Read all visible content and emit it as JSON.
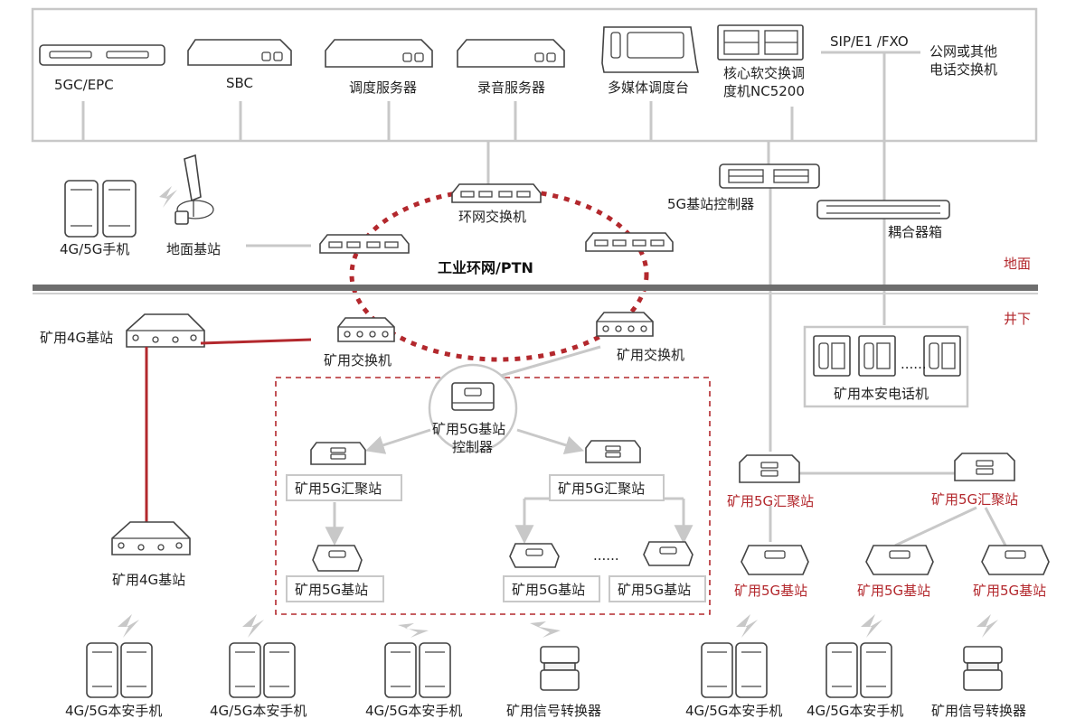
{
  "colors": {
    "accent_red": "#b3282d",
    "line_gray": "#c8c8c8",
    "text": "#222222"
  },
  "top": {
    "devices": [
      "5GC/EPC",
      "SBC",
      "调度服务器",
      "录音服务器",
      "多媒体调度台"
    ],
    "core_switch": [
      "核心软交换调",
      "度机NC5200"
    ],
    "sip_label": "SIP/E1 /FXO",
    "external": [
      "公网或其他",
      "电话交换机"
    ]
  },
  "ground": {
    "phones_label": "4G/5G手机",
    "base_station_label": "地面基站",
    "ring_switch_label": "环网交换机",
    "ring_label": "工业环网/PTN",
    "bs_controller_label": "5G基站控制器",
    "coupler_label": "耦合器箱",
    "zone_label": "地面"
  },
  "underground": {
    "zone_label": "井下",
    "mine_4g_bs": "矿用4G基站",
    "mine_switch": "矿用交换机",
    "mine_5g_controller": [
      "矿用5G基站",
      "控制器"
    ],
    "mine_5g_hub": "矿用5G汇聚站",
    "mine_5g_bs": "矿用5G基站",
    "ellipsis": "......",
    "safety_phone_box": "矿用本安电话机",
    "safety_phone_label": "4G/5G本安手机",
    "signal_converter": "矿用信号转换器"
  }
}
